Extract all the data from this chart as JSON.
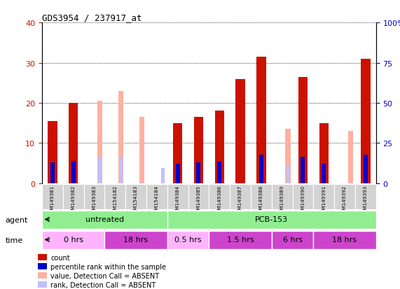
{
  "title": "GDS3954 / 237917_at",
  "samples": [
    "GSM149381",
    "GSM149382",
    "GSM149383",
    "GSM154182",
    "GSM154183",
    "GSM154184",
    "GSM149384",
    "GSM149385",
    "GSM149386",
    "GSM149387",
    "GSM149388",
    "GSM149389",
    "GSM149390",
    "GSM149391",
    "GSM149392",
    "GSM149393"
  ],
  "count_values": [
    15.5,
    20.0,
    null,
    null,
    null,
    null,
    15.0,
    16.5,
    18.0,
    26.0,
    31.5,
    null,
    26.5,
    15.0,
    null,
    31.0
  ],
  "rank_values": [
    13.0,
    14.0,
    null,
    null,
    null,
    null,
    12.0,
    13.0,
    13.5,
    null,
    18.0,
    null,
    16.5,
    12.0,
    null,
    18.0
  ],
  "absent_count_values": [
    null,
    null,
    20.5,
    23.0,
    16.5,
    null,
    null,
    null,
    null,
    null,
    null,
    13.5,
    null,
    null,
    13.0,
    null
  ],
  "absent_rank_values": [
    null,
    null,
    16.5,
    16.5,
    null,
    9.5,
    null,
    null,
    null,
    null,
    null,
    11.0,
    null,
    null,
    null,
    null
  ],
  "agent_groups": [
    {
      "label": "untreated",
      "start": 0,
      "end": 6,
      "color": "#90EE90"
    },
    {
      "label": "PCB-153",
      "start": 6,
      "end": 16,
      "color": "#90EE90"
    }
  ],
  "time_groups": [
    {
      "label": "0 hrs",
      "start": 0,
      "end": 3,
      "color": "#FFB3FF"
    },
    {
      "label": "18 hrs",
      "start": 3,
      "end": 6,
      "color": "#CC44CC"
    },
    {
      "label": "0.5 hrs",
      "start": 6,
      "end": 8,
      "color": "#FFB3FF"
    },
    {
      "label": "1.5 hrs",
      "start": 8,
      "end": 11,
      "color": "#CC44CC"
    },
    {
      "label": "6 hrs",
      "start": 11,
      "end": 13,
      "color": "#CC44CC"
    },
    {
      "label": "18 hrs",
      "start": 13,
      "end": 16,
      "color": "#CC44CC"
    }
  ],
  "count_color": "#CC1100",
  "rank_color": "#0000CC",
  "absent_count_color": "#FFB0A0",
  "absent_rank_color": "#C0C0FF",
  "ylim_left": [
    0,
    40
  ],
  "ylim_right": [
    0,
    100
  ],
  "yticks_left": [
    0,
    10,
    20,
    30,
    40
  ],
  "yticks_right": [
    0,
    25,
    50,
    75,
    100
  ],
  "legend_items": [
    {
      "label": "count",
      "color": "#CC1100"
    },
    {
      "label": "percentile rank within the sample",
      "color": "#0000CC"
    },
    {
      "label": "value, Detection Call = ABSENT",
      "color": "#FFB0A0"
    },
    {
      "label": "rank, Detection Call = ABSENT",
      "color": "#C0C0FF"
    }
  ]
}
